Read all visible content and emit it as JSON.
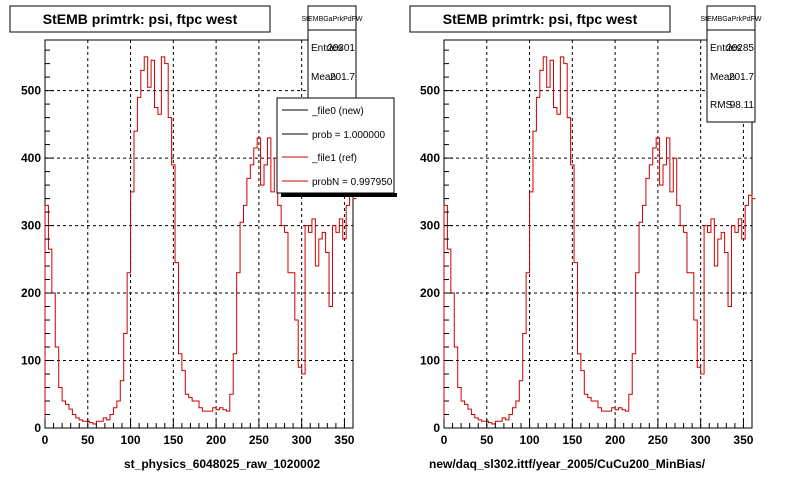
{
  "colors": {
    "ref": "#cc0000",
    "new": "#000000",
    "background": "#ffffff"
  },
  "panels": [
    {
      "title": "StEMB primtrk: psi, ftpc west",
      "stats": {
        "header": "StEMBGaPrkPdFW",
        "rows": [
          {
            "label": "Entries",
            "value": "20301"
          },
          {
            "label": "Mean",
            "value": "201.7"
          }
        ]
      },
      "legend": {
        "entries": [
          {
            "text": "_file0 (new)"
          },
          {
            "text": "prob = 1.000000"
          },
          {
            "text": "_file1 (ref)"
          },
          {
            "text": "probN = 0.997950"
          }
        ]
      },
      "xlabel": "st_physics_6048025_raw_1020002"
    },
    {
      "title": "StEMB primtrk: psi, ftpc west",
      "stats": {
        "header": "StEMBGaPrkPdFW",
        "rows": [
          {
            "label": "Entries",
            "value": "20285"
          },
          {
            "label": "Mean",
            "value": "201.7"
          },
          {
            "label": "RMS",
            "value": "98.11"
          }
        ]
      },
      "xlabel": "new/daq_sl302.ittf/year_2005/CuCu200_MinBias/"
    }
  ],
  "chart_data": {
    "type": "line",
    "title": "StEMB primtrk: psi, ftpc west",
    "xlim": [
      0,
      360
    ],
    "ylim": [
      0,
      575
    ],
    "grid": true,
    "x_ticks": [
      0,
      50,
      100,
      150,
      200,
      250,
      300,
      350
    ],
    "y_ticks": [
      0,
      100,
      200,
      300,
      400,
      500
    ],
    "bin_width": 4,
    "series": [
      {
        "name": "_file1 (ref)",
        "values": [
          330,
          265,
          200,
          120,
          60,
          40,
          35,
          28,
          20,
          15,
          12,
          10,
          10,
          8,
          6,
          10,
          10,
          15,
          12,
          20,
          30,
          40,
          70,
          140,
          230,
          350,
          440,
          490,
          530,
          550,
          505,
          545,
          475,
          465,
          550,
          540,
          460,
          390,
          245,
          110,
          85,
          50,
          45,
          40,
          40,
          30,
          25,
          25,
          25,
          30,
          27,
          30,
          27,
          25,
          50,
          110,
          230,
          305,
          330,
          370,
          390,
          415,
          430,
          360,
          390,
          430,
          350,
          400,
          330,
          300,
          290,
          230,
          230,
          160,
          90,
          80,
          300,
          290,
          310,
          240,
          280,
          290,
          260,
          180,
          300,
          290,
          310,
          280,
          330,
          345,
          340,
          340
        ]
      }
    ]
  }
}
